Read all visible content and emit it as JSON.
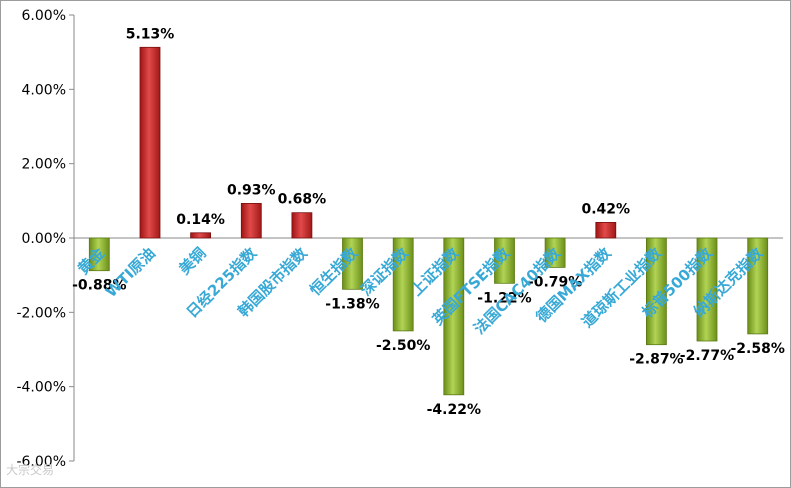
{
  "chart_data": {
    "type": "bar",
    "title": "",
    "xlabel": "",
    "ylabel": "",
    "ylim": [
      -0.06,
      0.06
    ],
    "y_ticks": [
      "6.00%",
      "4.00%",
      "2.00%",
      "0.00%",
      "-2.00%",
      "-4.00%",
      "-6.00%"
    ],
    "y_tick_values": [
      0.06,
      0.04,
      0.02,
      0,
      -0.02,
      -0.04,
      -0.06
    ],
    "grid": false,
    "legend": "none",
    "categories": [
      "黄金",
      "WTI原油",
      "美铜",
      "日经225指数",
      "韩国股市指数",
      "恒生指数",
      "深证指数",
      "上证指数",
      "英国FTSE指数",
      "法国CAC40指数",
      "德国MAX指数",
      "道琼斯工业指数",
      "标普500指数",
      "纳斯达克指数"
    ],
    "values": [
      -0.0088,
      0.0513,
      0.0014,
      0.0093,
      0.0068,
      -0.0138,
      -0.025,
      -0.0422,
      -0.0122,
      -0.0079,
      0.0042,
      -0.0287,
      -0.0277,
      -0.0258
    ],
    "data_labels": [
      "-0.88%",
      "5.13%",
      "0.14%",
      "0.93%",
      "0.68%",
      "-1.38%",
      "-2.50%",
      "-4.22%",
      "-1.22%",
      "-0.79%",
      "0.42%",
      "-2.87%",
      "-2.77%",
      "-2.58%"
    ],
    "colors": {
      "positive": "#d42a2a",
      "negative": "#8fbb2a",
      "category_label": "#38a9d6",
      "axis": "#8a8a8a"
    }
  },
  "watermark": "大宗交易"
}
